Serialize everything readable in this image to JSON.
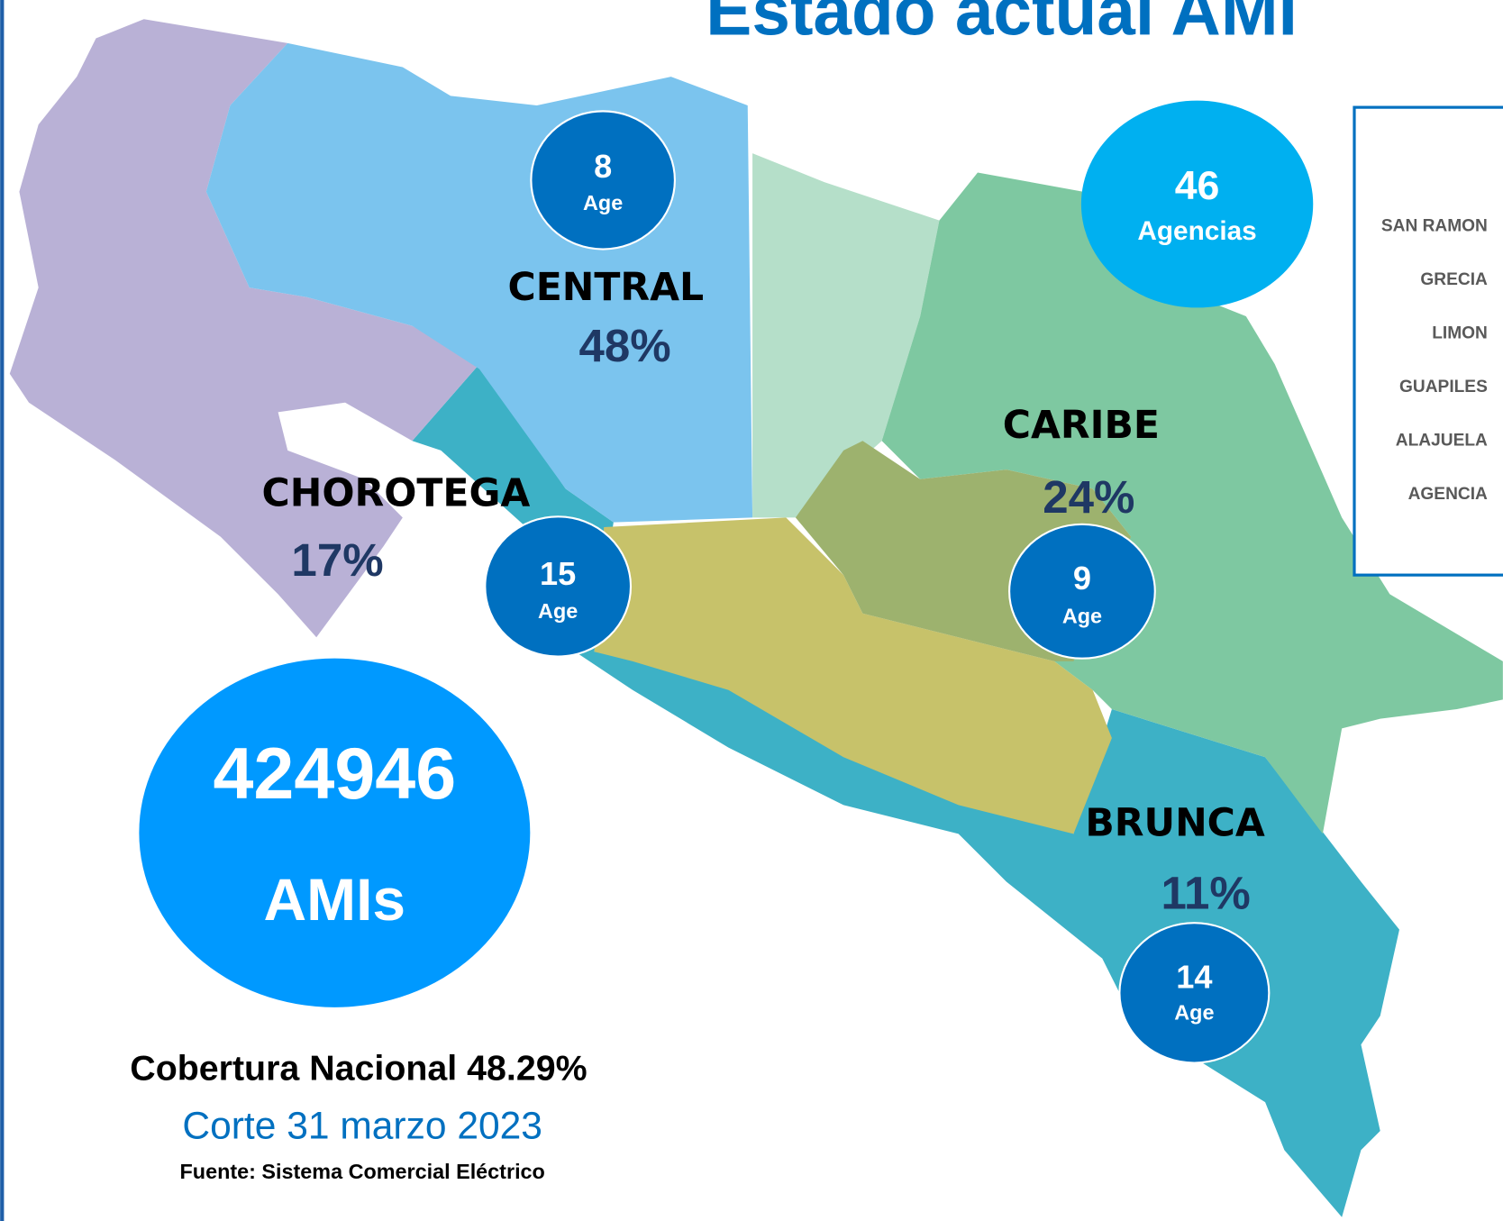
{
  "title": "Estado actual AMI",
  "regions": [
    {
      "name": "CENTRAL",
      "share": "48%",
      "agencies": "8",
      "agencies_label": "Age"
    },
    {
      "name": "CHOROTEGA",
      "share": "17%",
      "agencies": "15",
      "agencies_label": "Age"
    },
    {
      "name": "CARIBE",
      "share": "24%",
      "agencies": "9",
      "agencies_label": "Age"
    },
    {
      "name": "BRUNCA",
      "share": "11%",
      "agencies": "14",
      "agencies_label": "Age"
    }
  ],
  "total_agencies": {
    "value": "46",
    "label": "Agencias"
  },
  "total_amis": {
    "value": "424946",
    "label": "AMIs"
  },
  "coverage": "Cobertura Nacional 48.29%",
  "date": "Corte 31 marzo 2023",
  "source": "Fuente: Sistema Comercial Eléctrico",
  "legend": {
    "rows": [
      "SAN RAMON",
      "GRECIA",
      "LIMON",
      "GUAPILES",
      "ALAJUELA",
      "AGENCIA"
    ]
  }
}
